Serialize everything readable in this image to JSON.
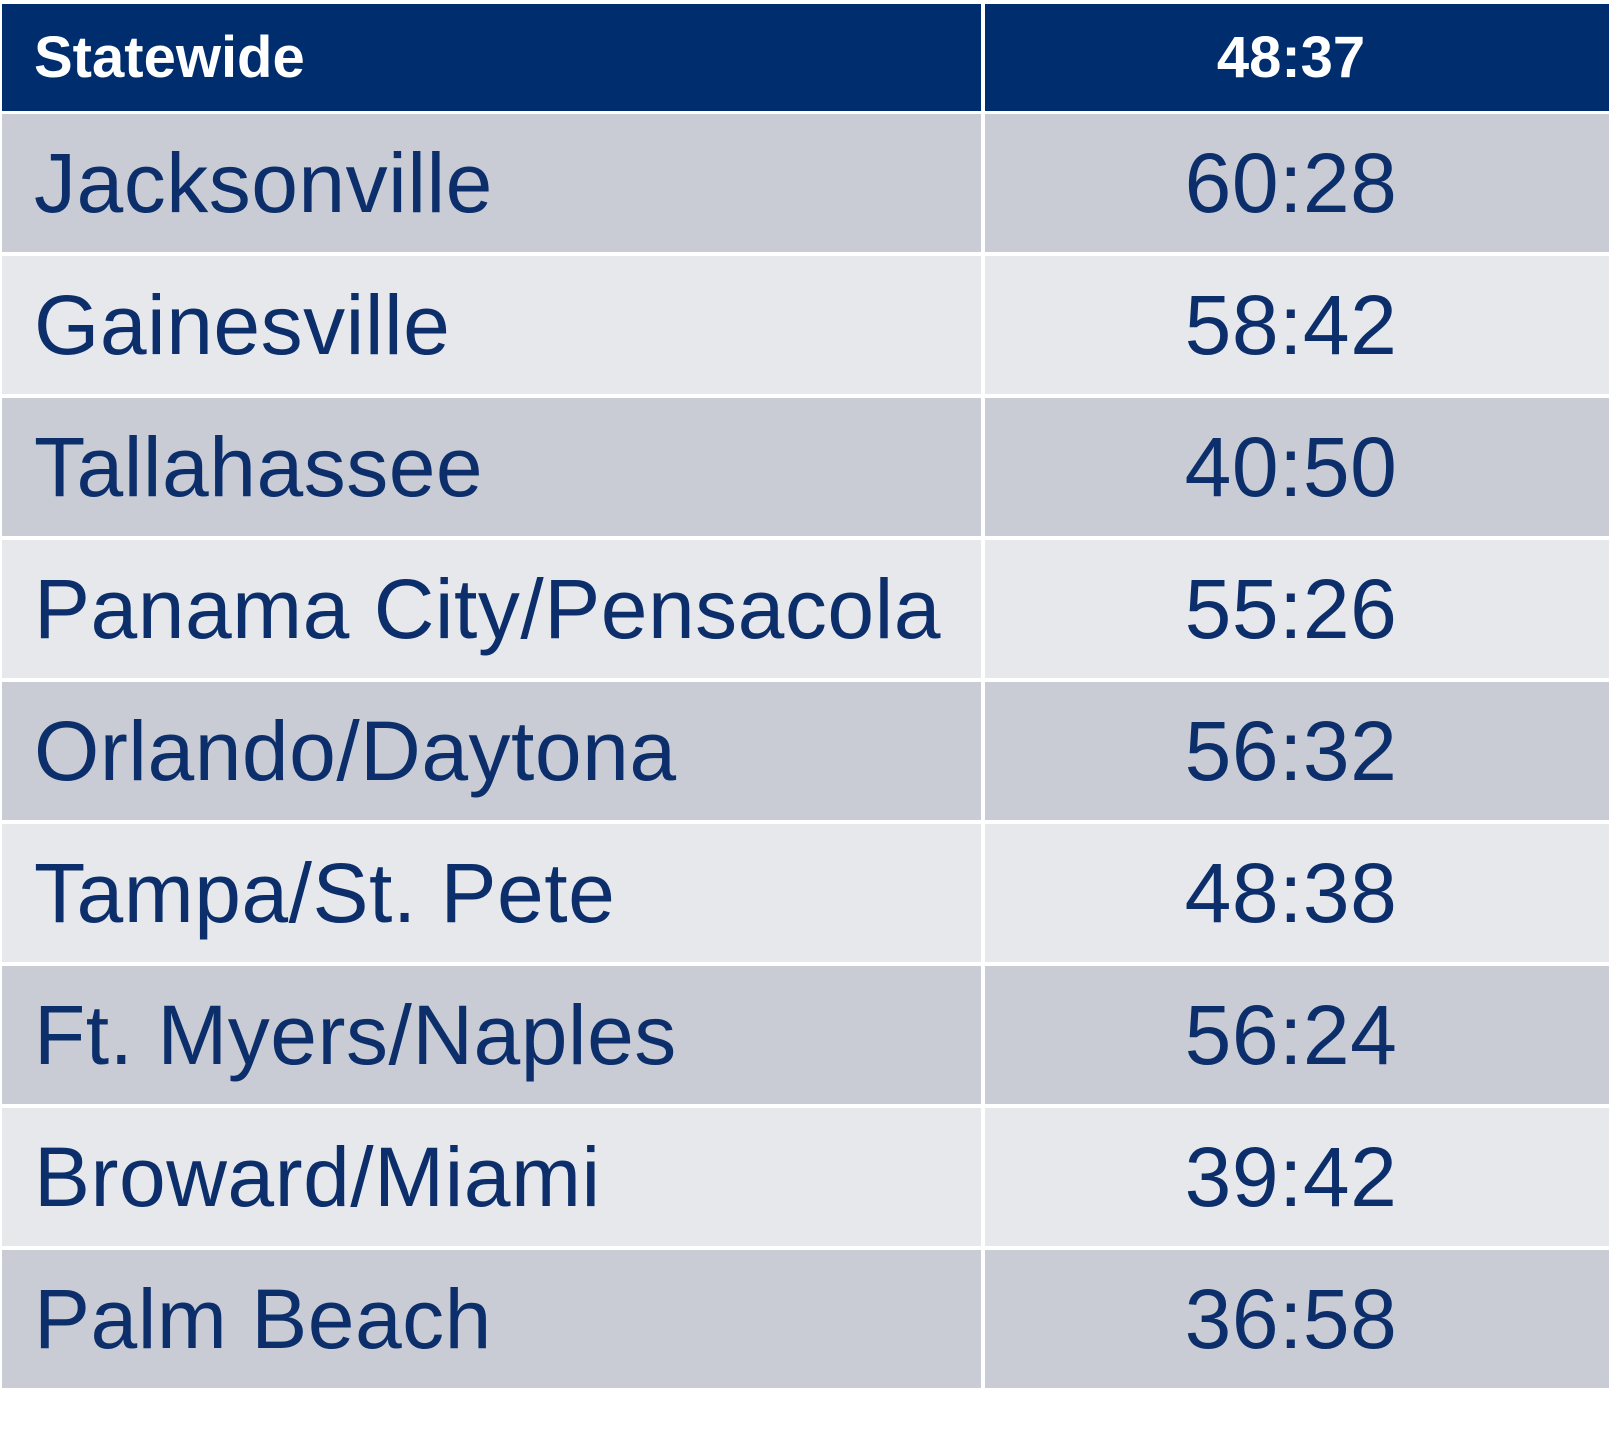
{
  "colors": {
    "header_bg": "#002d6e",
    "text": "#0c2f6b",
    "row_dark": "#c9ccd5",
    "row_light": "#e7e8ec"
  },
  "header": {
    "label": "Statewide",
    "value": "48:37"
  },
  "rows": [
    {
      "label": "Jacksonville",
      "value": "60:28"
    },
    {
      "label": "Gainesville",
      "value": "58:42"
    },
    {
      "label": "Tallahassee",
      "value": "40:50"
    },
    {
      "label": "Panama City/Pensacola",
      "value": "55:26"
    },
    {
      "label": "Orlando/Daytona",
      "value": "56:32"
    },
    {
      "label": "Tampa/St. Pete",
      "value": "48:38"
    },
    {
      "label": "Ft. Myers/Naples",
      "value": "56:24"
    },
    {
      "label": "Broward/Miami",
      "value": "39:42"
    },
    {
      "label": "Palm Beach",
      "value": "36:58"
    }
  ]
}
